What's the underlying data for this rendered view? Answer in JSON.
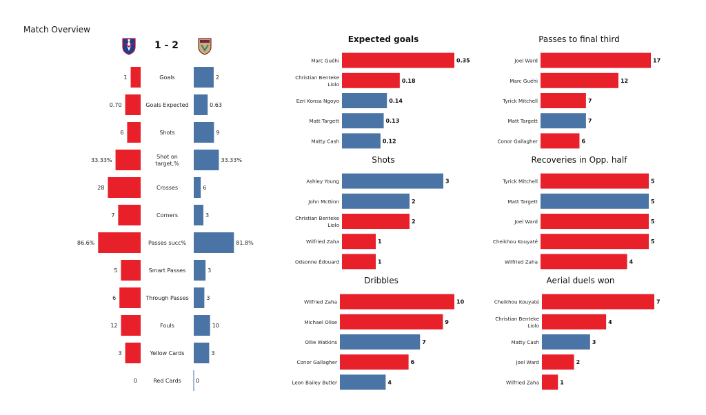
{
  "overview": {
    "title": "Match Overview",
    "score": "1 - 2",
    "home_color": "#e8202a",
    "away_color": "#4a74a5",
    "home_crest_icon": "crystal-palace-crest-icon",
    "away_crest_icon": "aston-villa-crest-icon"
  },
  "chart_data": [
    {
      "type": "bar",
      "title": "",
      "orientation": "diverging-horizontal",
      "categories": [
        "Goals",
        "Goals Expected",
        "Shots",
        "Shot on target,%",
        "Crosses",
        "Corners",
        "Passes succ%",
        "Smart Passes",
        "Through Passes",
        "Fouls",
        "Yellow Cards",
        "Red Cards"
      ],
      "series": [
        {
          "values": [
            1,
            0.7,
            6,
            33.33,
            28,
            7,
            86.6,
            5,
            6,
            12,
            3,
            0
          ],
          "labels": [
            "1",
            "0.70",
            "6",
            "33.33%",
            "28",
            "7",
            "86.6%",
            "5",
            "6",
            "12",
            "3",
            "0"
          ],
          "color": "#e8202a"
        },
        {
          "values": [
            2,
            0.63,
            9,
            33.33,
            6,
            3,
            81.8,
            3,
            3,
            10,
            3,
            0
          ],
          "labels": [
            "2",
            "0.63",
            "9",
            "33.33%",
            "6",
            "3",
            "81.8%",
            "3",
            "3",
            "10",
            "3",
            "0"
          ],
          "color": "#4a74a5"
        }
      ],
      "grid": false
    },
    {
      "type": "bar",
      "orientation": "horizontal",
      "title": "Expected goals",
      "title_bold": true,
      "categories": [
        "Marc Guéhi",
        "Christian Benteke Liolo",
        "Ezri Konsa Ngoyo",
        "Matt Targett",
        "Matty Cash"
      ],
      "values": [
        0.35,
        0.18,
        0.14,
        0.13,
        0.12
      ],
      "labels": [
        "0.35",
        "0.18",
        "0.14",
        "0.13",
        "0.12"
      ],
      "colors": [
        "#e8202a",
        "#e8202a",
        "#4a74a5",
        "#4a74a5",
        "#4a74a5"
      ],
      "xlim": [
        0,
        0.35
      ]
    },
    {
      "type": "bar",
      "orientation": "horizontal",
      "title": "Shots",
      "categories": [
        "Ashley  Young",
        "John McGinn",
        "Christian Benteke Liolo",
        "Wilfried Zaha",
        "Odsonne Édouard"
      ],
      "values": [
        3,
        2,
        2,
        1,
        1
      ],
      "labels": [
        "3",
        "2",
        "2",
        "1",
        "1"
      ],
      "colors": [
        "#4a74a5",
        "#4a74a5",
        "#e8202a",
        "#e8202a",
        "#e8202a"
      ],
      "xlim": [
        0,
        3
      ]
    },
    {
      "type": "bar",
      "orientation": "horizontal",
      "title": "Dribbles",
      "categories": [
        "Wilfried Zaha",
        "Michael Olise",
        "Ollie Watkins",
        "Conor Gallagher",
        "Leon Bailey Butler"
      ],
      "values": [
        10,
        9,
        7,
        6,
        4
      ],
      "labels": [
        "10",
        "9",
        "7",
        "6",
        "4"
      ],
      "colors": [
        "#e8202a",
        "#e8202a",
        "#4a74a5",
        "#e8202a",
        "#4a74a5"
      ],
      "xlim": [
        0,
        10
      ]
    },
    {
      "type": "bar",
      "orientation": "horizontal",
      "title": "Passes to final third",
      "categories": [
        "Joel Ward",
        "Marc Guéhi",
        "Tyrick Mitchell",
        "Matt Targett",
        "Conor Gallagher"
      ],
      "values": [
        17,
        12,
        7,
        7,
        6
      ],
      "labels": [
        "17",
        "12",
        "7",
        "7",
        "6"
      ],
      "colors": [
        "#e8202a",
        "#e8202a",
        "#e8202a",
        "#4a74a5",
        "#e8202a"
      ],
      "xlim": [
        0,
        17
      ]
    },
    {
      "type": "bar",
      "orientation": "horizontal",
      "title": "Recoveries in Opp. half",
      "categories": [
        "Tyrick Mitchell",
        "Matt Targett",
        "Joel Ward",
        "Cheikhou Kouyaté",
        "Wilfried Zaha"
      ],
      "values": [
        5,
        5,
        5,
        5,
        4
      ],
      "labels": [
        "5",
        "5",
        "5",
        "5",
        "4"
      ],
      "colors": [
        "#e8202a",
        "#4a74a5",
        "#e8202a",
        "#e8202a",
        "#e8202a"
      ],
      "xlim": [
        0,
        5
      ]
    },
    {
      "type": "bar",
      "orientation": "horizontal",
      "title": "Aerial duels won",
      "categories": [
        "Cheikhou Kouyaté",
        "Christian Benteke Liolo",
        "Matty Cash",
        "Joel Ward",
        "Wilfried Zaha"
      ],
      "values": [
        7,
        4,
        3,
        2,
        1
      ],
      "labels": [
        "7",
        "4",
        "3",
        "2",
        "1"
      ],
      "colors": [
        "#e8202a",
        "#e8202a",
        "#4a74a5",
        "#e8202a",
        "#e8202a"
      ],
      "xlim": [
        0,
        7
      ]
    }
  ]
}
